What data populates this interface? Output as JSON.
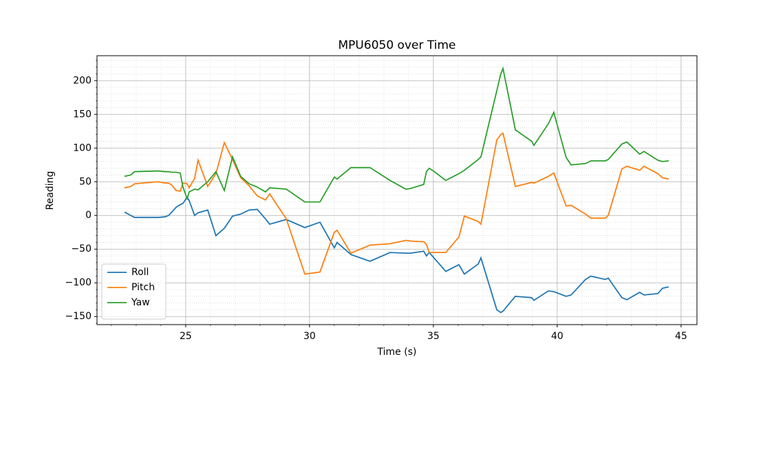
{
  "chart_data": {
    "type": "line",
    "title": "MPU6050 over Time",
    "x_label": "Time (s)",
    "y_label": "Reading",
    "x": [
      22.53,
      22.78,
      22.94,
      23.89,
      24.17,
      24.31,
      24.44,
      24.61,
      24.78,
      24.89,
      25.06,
      25.14,
      25.36,
      25.5,
      25.89,
      26.22,
      26.56,
      26.89,
      27.22,
      27.56,
      27.89,
      28.22,
      28.39,
      29.06,
      29.81,
      30.42,
      31.0,
      31.11,
      31.67,
      32.44,
      33.25,
      33.89,
      34.08,
      34.61,
      34.72,
      34.83,
      35.0,
      35.5,
      36.03,
      36.25,
      36.81,
      36.92,
      37.56,
      37.72,
      37.81,
      38.31,
      38.97,
      39.06,
      39.64,
      39.86,
      40.36,
      40.56,
      41.14,
      41.36,
      41.94,
      42.06,
      42.61,
      42.81,
      43.33,
      43.5,
      44.06,
      44.25,
      44.5
    ],
    "series": [
      {
        "name": "Roll",
        "color": "#1f77b4",
        "values": [
          5,
          0,
          -3,
          -3,
          -2,
          0,
          5,
          12,
          16,
          18,
          27,
          22,
          0,
          4,
          8,
          -30,
          -19,
          -1,
          2,
          8,
          9,
          -5,
          -13,
          -6,
          -18,
          -10,
          -48,
          -40,
          -58,
          -68,
          -55,
          -56,
          -56,
          -53,
          -60,
          -55,
          -62,
          -83,
          -73,
          -87,
          -72,
          -63,
          -140,
          -144,
          -142,
          -120,
          -122,
          -126,
          -112,
          -113,
          -120,
          -118,
          -95,
          -90,
          -95,
          -93,
          -122,
          -125,
          -114,
          -118,
          -116,
          -108,
          -106
        ]
      },
      {
        "name": "Pitch",
        "color": "#ff7f0e",
        "values": [
          41,
          43,
          47,
          50,
          48,
          48,
          45,
          37,
          36,
          48,
          47,
          41,
          55,
          82,
          43,
          62,
          108,
          83,
          56,
          44,
          29,
          23,
          32,
          -5,
          -87,
          -84,
          -25,
          -22,
          -56,
          -44,
          -42,
          -37,
          -38,
          -39,
          -43,
          -55,
          -55,
          -55,
          -32,
          -1,
          -9,
          -13,
          112,
          120,
          122,
          43,
          49,
          48,
          58,
          63,
          14,
          15,
          2,
          -4,
          -4,
          0,
          69,
          73,
          67,
          73,
          62,
          56,
          54
        ]
      },
      {
        "name": "Yaw",
        "color": "#2ca02c",
        "values": [
          58,
          60,
          65,
          66,
          65,
          65,
          64,
          64,
          63,
          42,
          25,
          35,
          39,
          38,
          50,
          65,
          37,
          87,
          58,
          47,
          42,
          35,
          41,
          39,
          20,
          20,
          57,
          54,
          71,
          71,
          52,
          39,
          40,
          46,
          65,
          70,
          66,
          52,
          62,
          67,
          83,
          87,
          185,
          210,
          218,
          127,
          110,
          104,
          136,
          153,
          86,
          75,
          77,
          81,
          81,
          83,
          106,
          109,
          91,
          95,
          82,
          80,
          81
        ]
      }
    ],
    "xlim": [
      21.42,
      45.64
    ],
    "ylim": [
      -162,
      237
    ],
    "xticks": [
      25,
      30,
      35,
      40,
      45
    ],
    "yticks": [
      {
        "value": -150,
        "label": "−150"
      },
      {
        "value": -100,
        "label": "−100"
      },
      {
        "value": -50,
        "label": "−50"
      },
      0,
      50,
      100,
      150,
      200
    ],
    "xminorticks": [
      22,
      23,
      24,
      26,
      27,
      28,
      29,
      31,
      32,
      33,
      34,
      36,
      37,
      38,
      39,
      41,
      42,
      43,
      44,
      45
    ],
    "yminorticks": [
      -160,
      -140,
      -130,
      -120,
      -110,
      -90,
      -80,
      -70,
      -60,
      -40,
      -30,
      -20,
      -10,
      10,
      20,
      30,
      40,
      60,
      70,
      80,
      90,
      110,
      120,
      130,
      140,
      160,
      170,
      180,
      190,
      210,
      220,
      230
    ],
    "grid": true,
    "legend": "lower left"
  }
}
